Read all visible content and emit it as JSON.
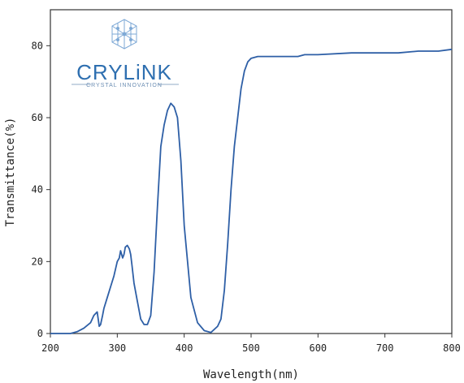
{
  "logo": {
    "name": "CRYLiNK",
    "tagline": "CRYSTAL INNOVATION"
  },
  "chart_data": {
    "type": "line",
    "title": "",
    "xlabel": "Wavelength(nm)",
    "ylabel": "Transmittance(%)",
    "xlim": [
      200,
      800
    ],
    "ylim": [
      0,
      90
    ],
    "xticks": [
      200,
      300,
      400,
      500,
      600,
      700,
      800
    ],
    "yticks": [
      0,
      20,
      40,
      60,
      80
    ],
    "grid": false,
    "line_color": "#2e5fa6",
    "series": [
      {
        "x": [
          200,
          230,
          240,
          250,
          260,
          265,
          270,
          273,
          275,
          278,
          280,
          285,
          290,
          295,
          300,
          303,
          305,
          308,
          310,
          312,
          315,
          318,
          320,
          322,
          325,
          330,
          335,
          340,
          345,
          350,
          355,
          360,
          365,
          370,
          375,
          380,
          385,
          390,
          395,
          400,
          405,
          410,
          420,
          430,
          440,
          450,
          455,
          460,
          465,
          470,
          475,
          480,
          485,
          490,
          495,
          500,
          510,
          520,
          530,
          550,
          570,
          580,
          600,
          650,
          700,
          720,
          750,
          780,
          800
        ],
        "y": [
          0,
          0,
          0.5,
          1.5,
          3,
          5,
          6,
          2,
          2.5,
          5,
          7,
          10,
          13,
          16,
          20,
          21,
          23,
          21,
          22,
          24,
          24.5,
          23.5,
          22,
          19,
          14,
          9,
          4,
          2.5,
          2.5,
          5,
          17,
          35,
          52,
          58,
          62,
          64,
          63,
          60,
          48,
          30,
          20,
          10,
          3,
          0.8,
          0.3,
          2,
          4,
          12,
          25,
          40,
          52,
          60,
          68,
          73,
          75.5,
          76.5,
          77,
          77,
          77,
          77,
          77,
          77.5,
          77.5,
          78,
          78,
          78,
          78.5,
          78.5,
          79
        ]
      }
    ]
  }
}
